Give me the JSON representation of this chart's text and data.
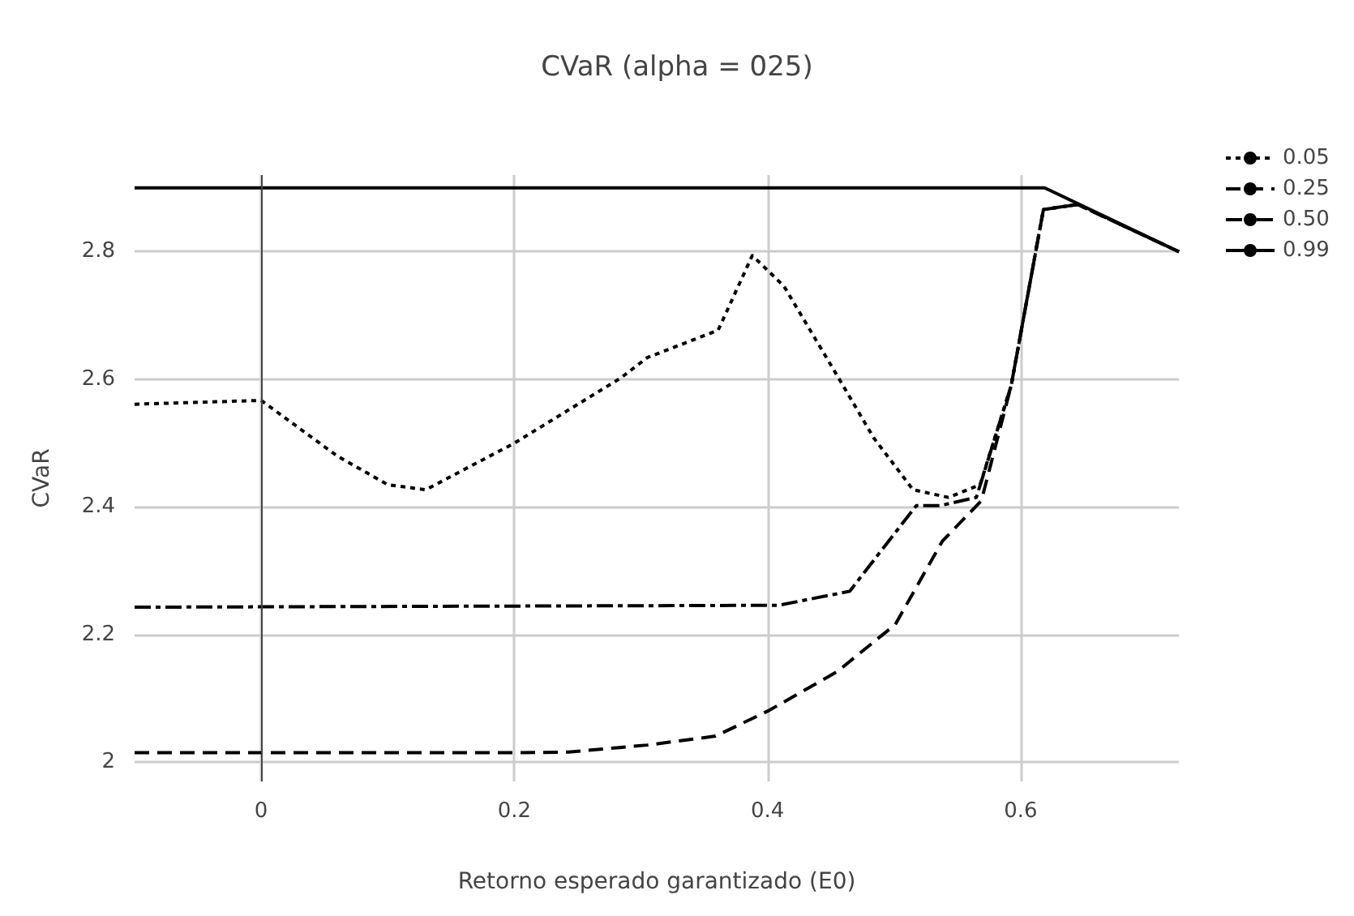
{
  "chart_data": {
    "type": "line",
    "title": "CVaR (alpha = 025)",
    "xlabel": "Retorno esperado garantizado (E0)",
    "ylabel": "CVaR",
    "xlim": [
      -0.1,
      0.725
    ],
    "xticks": [
      0,
      0.2,
      0.4,
      0.6
    ],
    "ylim": [
      1.97,
      2.92
    ],
    "yticks": [
      2,
      2.2,
      2.4,
      2.6,
      2.8
    ],
    "grid": true,
    "legend": "top right",
    "marker": "none",
    "ref_lines": [
      {
        "axis": "x",
        "value": 0,
        "label": null,
        "color": "#444444"
      }
    ],
    "series": [
      {
        "name": "0.05",
        "color": "#000000",
        "line_style": "dotted",
        "x": [
          -0.1,
          0,
          0.06,
          0.1,
          0.13,
          0.2,
          0.284,
          0.305,
          0.361,
          0.388,
          0.413,
          0.455,
          0.484,
          0.515,
          0.543,
          0.568,
          0.5925,
          0.618,
          0.645,
          0.725
        ],
        "values": [
          2.561,
          2.567,
          2.48,
          2.435,
          2.427,
          2.5,
          2.602,
          2.634,
          2.677,
          2.794,
          2.746,
          2.606,
          2.508,
          2.427,
          2.415,
          2.435,
          2.59,
          2.866,
          2.874,
          2.8
        ]
      },
      {
        "name": "0.25",
        "color": "#000000",
        "line_style": "dashed",
        "x": [
          -0.1,
          0.2,
          0.243,
          0.305,
          0.359,
          0.401,
          0.455,
          0.501,
          0.538,
          0.569,
          0.5925,
          0.618,
          0.645,
          0.725
        ],
        "values": [
          2.015,
          2.015,
          2.016,
          2.027,
          2.041,
          2.081,
          2.142,
          2.216,
          2.346,
          2.41,
          2.59,
          2.866,
          2.874,
          2.8
        ]
      },
      {
        "name": "0.50",
        "color": "#000000",
        "line_style": "dashdot",
        "x": [
          -0.1,
          0.409,
          0.465,
          0.5175,
          0.536,
          0.565,
          0.5925,
          0.618,
          0.645,
          0.725
        ],
        "values": [
          2.243,
          2.246,
          2.268,
          2.402,
          2.402,
          2.415,
          2.59,
          2.866,
          2.874,
          2.8
        ]
      },
      {
        "name": "0.99",
        "color": "#000000",
        "line_style": "solid",
        "x": [
          -0.1,
          0.619,
          0.725
        ],
        "values": [
          2.9,
          2.9,
          2.8
        ]
      }
    ]
  }
}
